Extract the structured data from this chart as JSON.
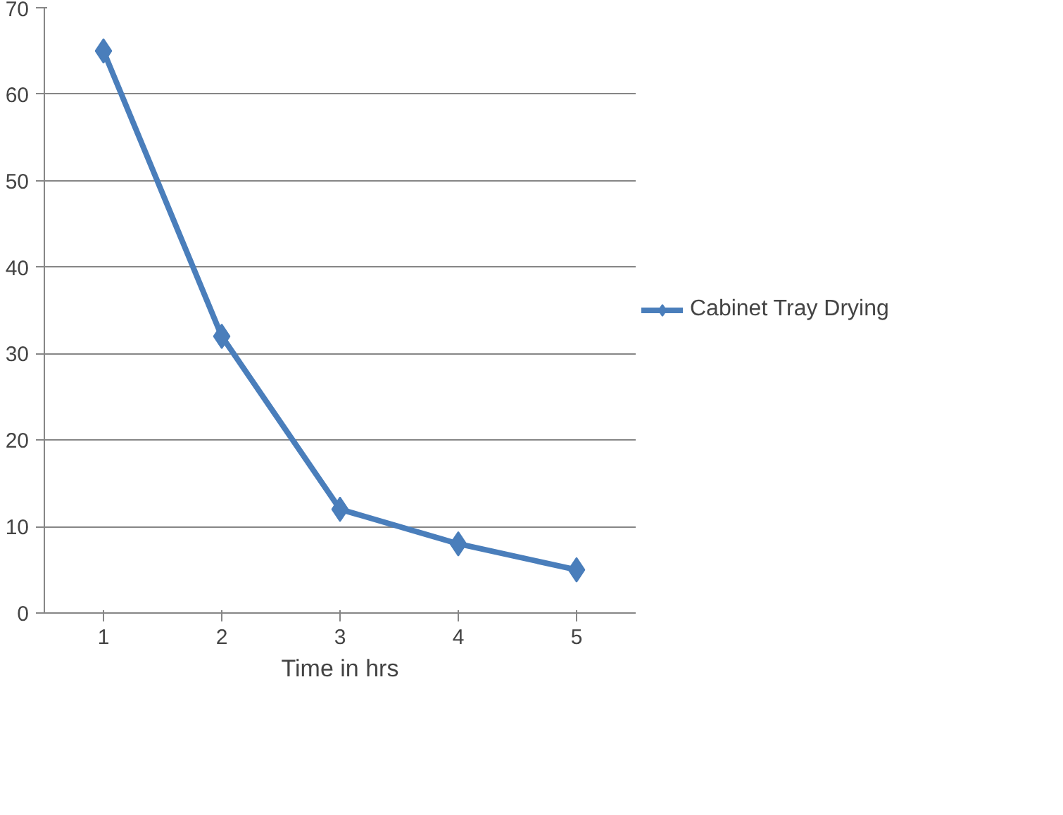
{
  "chart_data": {
    "type": "line",
    "xlabel": "Time in hrs",
    "categories": [
      "1",
      "2",
      "3",
      "4",
      "5"
    ],
    "series": [
      {
        "name": "Cabinet Tray Drying",
        "color": "#4a7ebb",
        "values": [
          65,
          32,
          12,
          8,
          5
        ]
      }
    ],
    "ylim": [
      0,
      70
    ],
    "yticks": [
      0,
      10,
      20,
      30,
      40,
      50,
      60,
      70
    ],
    "grid": "y",
    "legend": "right",
    "marker": "diamond",
    "line_style": "solid"
  }
}
